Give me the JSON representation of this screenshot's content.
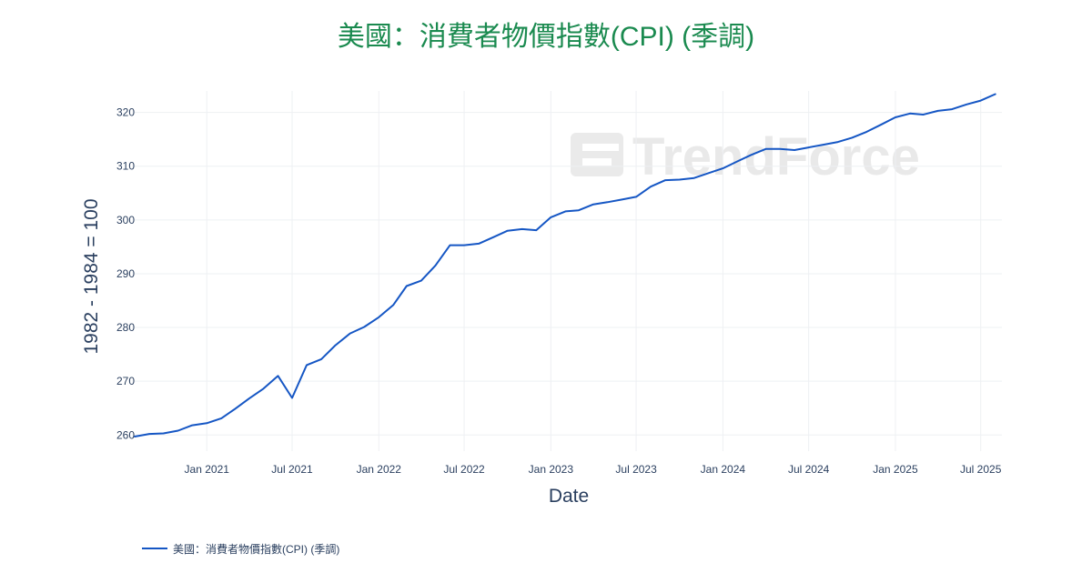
{
  "chart_data": {
    "type": "line",
    "title": "美國：消費者物價指數(CPI) (季調)",
    "xlabel": "Date",
    "ylabel": "1982 - 1984 = 100",
    "ylim": [
      257,
      324
    ],
    "xlim": [
      "2020-08-01",
      "2025-08-15"
    ],
    "x_ticks": [
      {
        "date": "2021-01-01",
        "label": "Jan 2021"
      },
      {
        "date": "2021-07-01",
        "label": "Jul 2021"
      },
      {
        "date": "2022-01-01",
        "label": "Jan 2022"
      },
      {
        "date": "2022-07-01",
        "label": "Jul 2022"
      },
      {
        "date": "2023-01-01",
        "label": "Jan 2023"
      },
      {
        "date": "2023-07-01",
        "label": "Jul 2023"
      },
      {
        "date": "2024-01-01",
        "label": "Jan 2024"
      },
      {
        "date": "2024-07-01",
        "label": "Jul 2024"
      },
      {
        "date": "2025-01-01",
        "label": "Jan 2025"
      },
      {
        "date": "2025-07-01",
        "label": "Jul 2025"
      }
    ],
    "y_ticks": [
      260,
      270,
      280,
      290,
      300,
      310,
      320
    ],
    "grid": true,
    "legend_position": "bottom-left",
    "series": [
      {
        "name": "美國：消費者物價指數(CPI) (季調)",
        "color": "#1556c4",
        "x": [
          "2020-08-01",
          "2020-09-01",
          "2020-10-01",
          "2020-11-01",
          "2020-12-01",
          "2021-01-01",
          "2021-02-01",
          "2021-03-01",
          "2021-04-01",
          "2021-05-01",
          "2021-06-01",
          "2021-07-01",
          "2021-08-01",
          "2021-09-01",
          "2021-10-01",
          "2021-11-01",
          "2021-12-01",
          "2022-01-01",
          "2022-02-01",
          "2022-03-01",
          "2022-04-01",
          "2022-05-01",
          "2022-06-01",
          "2022-07-01",
          "2022-08-01",
          "2022-09-01",
          "2022-10-01",
          "2022-11-01",
          "2022-12-01",
          "2023-01-01",
          "2023-02-01",
          "2023-03-01",
          "2023-04-01",
          "2023-05-01",
          "2023-06-01",
          "2023-07-01",
          "2023-08-01",
          "2023-09-01",
          "2023-10-01",
          "2023-11-01",
          "2023-12-01",
          "2024-01-01",
          "2024-02-01",
          "2024-03-01",
          "2024-04-01",
          "2024-05-01",
          "2024-06-01",
          "2024-07-01",
          "2024-08-01",
          "2024-09-01",
          "2024-10-01",
          "2024-11-01",
          "2024-12-01",
          "2025-01-01",
          "2025-02-01",
          "2025-03-01",
          "2025-04-01",
          "2025-05-01",
          "2025-06-01",
          "2025-07-01",
          "2025-08-01"
        ],
        "values": [
          259.7,
          260.2,
          260.3,
          260.8,
          261.8,
          262.2,
          263.1,
          264.8,
          266.8,
          268.6,
          271.0,
          266.9,
          273.0,
          274.1,
          276.7,
          278.9,
          280.1,
          281.9,
          284.2,
          287.7,
          288.7,
          291.5,
          295.3,
          295.3,
          295.6,
          296.8,
          298.0,
          298.3,
          298.1,
          300.5,
          301.6,
          301.8,
          302.9,
          303.3,
          303.8,
          304.3,
          306.2,
          307.4,
          307.5,
          307.8,
          308.7,
          309.6,
          310.9,
          312.1,
          313.2,
          313.2,
          313.0,
          313.5,
          314.0,
          314.5,
          315.3,
          316.4,
          317.7,
          319.1,
          319.8,
          319.6,
          320.3,
          320.6,
          321.5,
          322.2,
          323.4
        ]
      }
    ]
  },
  "watermark_text": "TrendForce"
}
